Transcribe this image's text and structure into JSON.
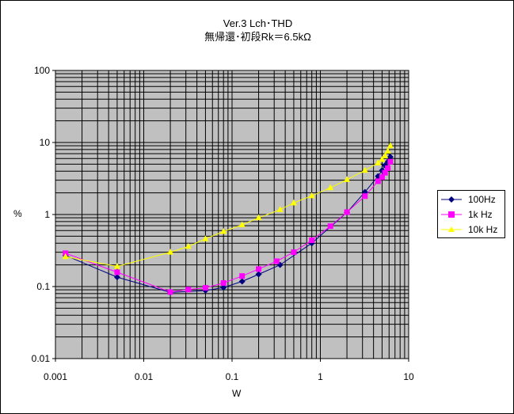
{
  "chart_data": {
    "type": "line",
    "title_lines": [
      "Ver.3 Lch･THD",
      "無帰還･初段Rk＝6.5kΩ"
    ],
    "xlabel": "W",
    "ylabel": "%",
    "x_scale": "log",
    "y_scale": "log",
    "xlim": [
      0.001,
      10
    ],
    "ylim": [
      0.01,
      100
    ],
    "x_ticks": [
      "0.001",
      "0.01",
      "0.1",
      "1",
      "10"
    ],
    "y_ticks": [
      "100",
      "10",
      "1",
      "0.1",
      "0.01"
    ],
    "grid": true,
    "plot_background": "#c0c0c0",
    "legend_position": "right",
    "series": [
      {
        "name": "100Hz",
        "color": "#000080",
        "marker": "diamond",
        "x": [
          0.0013,
          0.005,
          0.02,
          0.05,
          0.08,
          0.13,
          0.2,
          0.35,
          0.8,
          2.0,
          3.2,
          4.5,
          5.0,
          5.4,
          5.8,
          6.2
        ],
        "y": [
          0.27,
          0.135,
          0.083,
          0.088,
          0.097,
          0.118,
          0.148,
          0.2,
          0.4,
          1.07,
          2.05,
          3.4,
          4.1,
          4.8,
          5.4,
          6.3
        ]
      },
      {
        "name": "1k Hz",
        "color": "#ff00ff",
        "marker": "square",
        "x": [
          0.0013,
          0.005,
          0.02,
          0.032,
          0.05,
          0.08,
          0.13,
          0.2,
          0.32,
          0.5,
          0.8,
          1.3,
          2.0,
          3.2,
          4.5,
          5.0,
          5.4,
          5.8,
          6.2
        ],
        "y": [
          0.29,
          0.158,
          0.084,
          0.091,
          0.096,
          0.112,
          0.14,
          0.175,
          0.225,
          0.3,
          0.44,
          0.69,
          1.08,
          1.8,
          2.9,
          3.3,
          3.8,
          4.4,
          5.4
        ]
      },
      {
        "name": "10k Hz",
        "color": "#ffff00",
        "marker": "triangle",
        "x": [
          0.0013,
          0.005,
          0.02,
          0.032,
          0.05,
          0.08,
          0.13,
          0.2,
          0.35,
          0.5,
          0.8,
          1.3,
          2.0,
          3.2,
          4.5,
          5.0,
          5.4,
          5.8,
          6.2
        ],
        "y": [
          0.26,
          0.19,
          0.3,
          0.36,
          0.46,
          0.58,
          0.72,
          0.9,
          1.17,
          1.45,
          1.82,
          2.35,
          3.05,
          4.1,
          5.2,
          5.8,
          6.5,
          7.6,
          9.0
        ]
      }
    ]
  }
}
